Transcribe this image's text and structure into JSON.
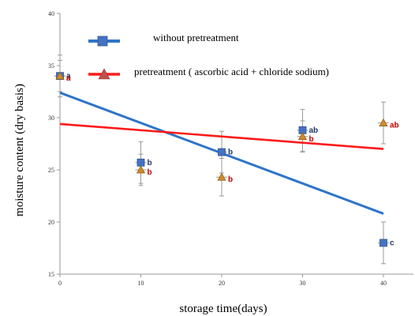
{
  "chart_data": {
    "type": "scatter",
    "title": "",
    "xlabel": "storage time(days)",
    "ylabel": "moisture content (dry basis)",
    "xlim": [
      0,
      40
    ],
    "ylim": [
      15,
      40
    ],
    "x_ticks": [
      "0",
      "10",
      "20",
      "30",
      "40"
    ],
    "y_ticks": [
      "15",
      "20",
      "25",
      "30",
      "35",
      "40"
    ],
    "grid": false,
    "legend_position": "top",
    "series": [
      {
        "name": "without pretreatment",
        "marker": "square",
        "color": "#4472c4",
        "line_color": "#2e75c8",
        "points": [
          {
            "x": 0,
            "y": 34,
            "err": 2.0,
            "label": "a"
          },
          {
            "x": 10,
            "y": 25.7,
            "err": 2.0,
            "label": "b"
          },
          {
            "x": 20,
            "y": 26.7,
            "err": 2.0,
            "label": "b"
          },
          {
            "x": 30,
            "y": 28.8,
            "err": 2.0,
            "label": "ab"
          },
          {
            "x": 40,
            "y": 18,
            "err": 2.0,
            "label": "c"
          }
        ],
        "trend": {
          "x": [
            0,
            40
          ],
          "y": [
            32.4,
            20.8
          ]
        }
      },
      {
        "name": "pretreatment ( ascorbic acid + chloride sodium)",
        "marker": "triangle",
        "color": "#c0504d",
        "line_color": "#ff1a1a",
        "points": [
          {
            "x": 0,
            "y": 34,
            "err": 1.5,
            "label": "a"
          },
          {
            "x": 10,
            "y": 25,
            "err": 1.5,
            "label": "b"
          },
          {
            "x": 20,
            "y": 24.3,
            "err": 1.8,
            "label": "b"
          },
          {
            "x": 30,
            "y": 28.2,
            "err": 1.5,
            "label": "b"
          },
          {
            "x": 40,
            "y": 29.5,
            "err": 2.0,
            "label": "ab"
          }
        ],
        "trend": {
          "x": [
            0,
            40
          ],
          "y": [
            29.4,
            27.0
          ]
        }
      }
    ]
  }
}
